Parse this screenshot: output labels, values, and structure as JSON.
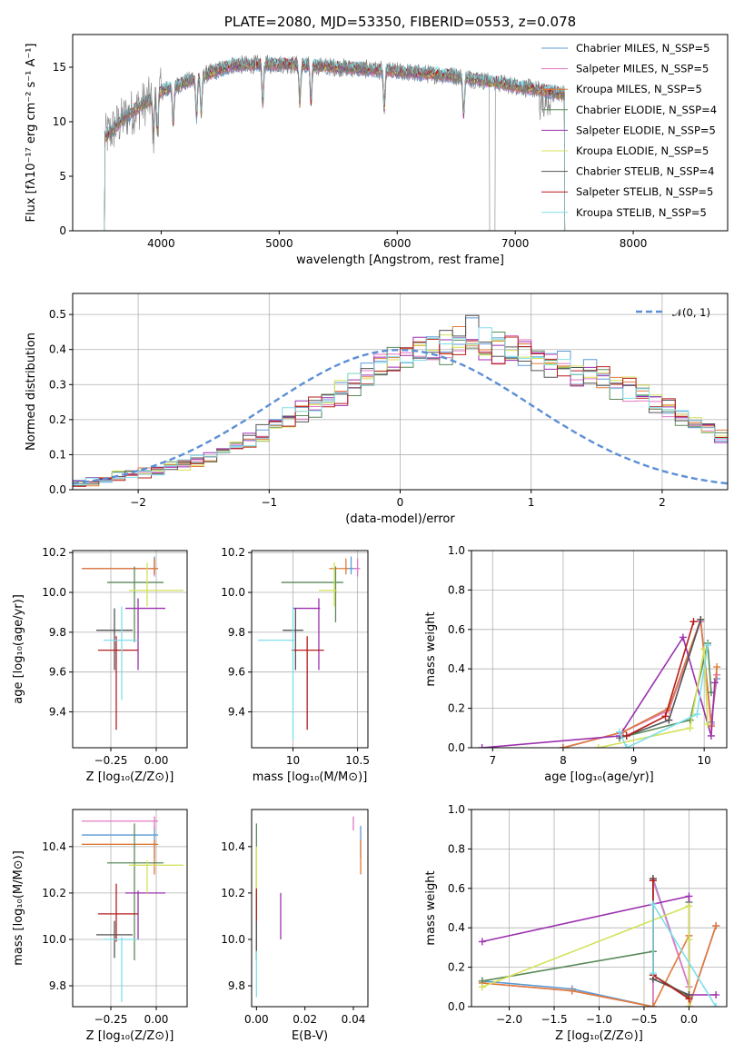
{
  "chart_data": [
    {
      "id": "spectrum",
      "type": "line",
      "title": "PLATE=2080, MJD=53350, FIBERID=0553, z=0.078",
      "xlabel": "wavelength [Angstrom, rest frame]",
      "ylabel": "Flux [fλ10⁻¹⁷ erg cm⁻² s⁻¹ A⁻¹]",
      "xlim": [
        3250,
        8800
      ],
      "ylim": [
        0,
        18
      ],
      "xticks": [
        4000,
        5000,
        6000,
        7000,
        8000
      ],
      "yticks": [
        0,
        5,
        10,
        15
      ],
      "grid": false,
      "legend_position": "upper right",
      "spectrum_range": [
        3520,
        7420
      ],
      "continuum": {
        "x": [
          3520,
          3700,
          3900,
          4000,
          4300,
          4600,
          5000,
          5500,
          6000,
          6500,
          7000,
          7420
        ],
        "y": [
          8.5,
          10.5,
          12.0,
          12.8,
          14.0,
          15.2,
          15.3,
          15.0,
          14.6,
          14.2,
          13.3,
          12.5
        ]
      },
      "series": [
        {
          "name": "Chabrier MILES, N_SSP=5",
          "color": "#5b9bd5"
        },
        {
          "name": "Salpeter MILES, N_SSP=5",
          "color": "#e377c2"
        },
        {
          "name": "Kroupa MILES, N_SSP=5",
          "color": "#e07b39"
        },
        {
          "name": "Chabrier ELODIE, N_SSP=4",
          "color": "#5a8a5a"
        },
        {
          "name": "Salpeter ELODIE, N_SSP=5",
          "color": "#9b2fae"
        },
        {
          "name": "Kroupa ELODIE, N_SSP=5",
          "color": "#d4e157"
        },
        {
          "name": "Chabrier STELIB, N_SSP=4",
          "color": "#555555"
        },
        {
          "name": "Salpeter STELIB, N_SSP=5",
          "color": "#b71c1c"
        },
        {
          "name": "Kroupa STELIB, N_SSP=5",
          "color": "#80deea"
        }
      ],
      "data_color": "#7f7f7f"
    },
    {
      "id": "residuals",
      "type": "histogram",
      "xlabel": "(data-model)/error",
      "ylabel": "Normed distribution",
      "xlim": [
        -2.5,
        2.5
      ],
      "ylim": [
        0,
        0.56
      ],
      "xticks": [
        -2,
        -1,
        0,
        1,
        2
      ],
      "yticks": [
        0.0,
        0.1,
        0.2,
        0.3,
        0.4,
        0.5
      ],
      "grid": true,
      "legend_position": "upper right",
      "reference": {
        "name": "𝒩(0, 1)",
        "mean": 0,
        "sigma": 1,
        "color": "#5b8fd6"
      },
      "bin_edges_start": -2.5,
      "bin_width": 0.1,
      "base_values": [
        0.02,
        0.025,
        0.03,
        0.04,
        0.045,
        0.05,
        0.055,
        0.065,
        0.07,
        0.08,
        0.095,
        0.11,
        0.12,
        0.14,
        0.16,
        0.18,
        0.2,
        0.22,
        0.24,
        0.26,
        0.28,
        0.3,
        0.33,
        0.35,
        0.37,
        0.38,
        0.4,
        0.4,
        0.41,
        0.43,
        0.45,
        0.42,
        0.41,
        0.4,
        0.39,
        0.38,
        0.37,
        0.36,
        0.34,
        0.33,
        0.32,
        0.3,
        0.29,
        0.27,
        0.25,
        0.23,
        0.21,
        0.19,
        0.17,
        0.15,
        0.13,
        0.12,
        0.1,
        0.09,
        0.08,
        0.07,
        0.06,
        0.055,
        0.05,
        0.045
      ],
      "series_colors": [
        "#5b9bd5",
        "#e377c2",
        "#e07b39",
        "#5a8a5a",
        "#9b2fae",
        "#d4e157",
        "#555555",
        "#b71c1c",
        "#80deea"
      ]
    },
    {
      "id": "age-vs-z",
      "type": "errorbar",
      "xlabel": "Z [log₁₀(Z/Z⊙)]",
      "ylabel": "age  [log₁₀(age/yr)]",
      "xlim": [
        -0.46,
        0.17
      ],
      "ylim": [
        9.22,
        10.21
      ],
      "xticks": [
        -0.25,
        0.0
      ],
      "xtick_labels": [
        "−0.25",
        "0.00"
      ],
      "yticks": [
        9.4,
        9.6,
        9.8,
        10.0,
        10.2
      ],
      "grid": true,
      "points": [
        {
          "color": "#5b9bd5",
          "x": -0.01,
          "xerr": [
            0.4,
            0.02
          ],
          "y": 10.12,
          "yerr": [
            0.03,
            0.06
          ]
        },
        {
          "color": "#e377c2",
          "x": -0.01,
          "xerr": [
            0.4,
            0.02
          ],
          "y": 10.12,
          "yerr": [
            0.04,
            0.05
          ]
        },
        {
          "color": "#e07b39",
          "x": -0.01,
          "xerr": [
            0.4,
            0.02
          ],
          "y": 10.12,
          "yerr": [
            0.03,
            0.05
          ]
        },
        {
          "color": "#5a8a5a",
          "x": -0.12,
          "xerr": [
            0.15,
            0.16
          ],
          "y": 10.05,
          "yerr": [
            0.3,
            0.08
          ]
        },
        {
          "color": "#9b2fae",
          "x": -0.1,
          "xerr": [
            0.07,
            0.15
          ],
          "y": 9.92,
          "yerr": [
            0.31,
            0.05
          ]
        },
        {
          "color": "#d4e157",
          "x": -0.05,
          "xerr": [
            0.1,
            0.2
          ],
          "y": 10.01,
          "yerr": [
            0.08,
            0.14
          ]
        },
        {
          "color": "#555555",
          "x": -0.23,
          "xerr": [
            0.1,
            0.1
          ],
          "y": 9.81,
          "yerr": [
            0.2,
            0.11
          ]
        },
        {
          "color": "#b71c1c",
          "x": -0.22,
          "xerr": [
            0.1,
            0.12
          ],
          "y": 9.71,
          "yerr": [
            0.4,
            0.07
          ]
        },
        {
          "color": "#80deea",
          "x": -0.19,
          "xerr": [
            0.1,
            0.09
          ],
          "y": 9.76,
          "yerr": [
            0.3,
            0.17
          ]
        }
      ]
    },
    {
      "id": "age-vs-mass",
      "type": "errorbar",
      "xlabel": "mass [log₁₀(M/M⊙)]",
      "ylabel": "",
      "xlim": [
        9.68,
        10.58
      ],
      "ylim": [
        9.22,
        10.21
      ],
      "xticks": [
        10.0,
        10.5
      ],
      "yticks": [
        9.4,
        9.6,
        9.8,
        10.0,
        10.2
      ],
      "grid": true,
      "points": [
        {
          "color": "#5b9bd5",
          "x": 10.45,
          "xerr": [
            0.04,
            0.04
          ],
          "y": 10.12,
          "yerr": [
            0.03,
            0.06
          ]
        },
        {
          "color": "#e377c2",
          "x": 10.5,
          "xerr": [
            0.03,
            0.02
          ],
          "y": 10.12,
          "yerr": [
            0.04,
            0.05
          ]
        },
        {
          "color": "#e07b39",
          "x": 10.41,
          "xerr": [
            0.13,
            0.02
          ],
          "y": 10.12,
          "yerr": [
            0.03,
            0.05
          ]
        },
        {
          "color": "#5a8a5a",
          "x": 10.33,
          "xerr": [
            0.42,
            0.06
          ],
          "y": 10.05,
          "yerr": [
            0.2,
            0.08
          ]
        },
        {
          "color": "#9b2fae",
          "x": 10.2,
          "xerr": [
            0.2,
            0.01
          ],
          "y": 9.92,
          "yerr": [
            0.31,
            0.05
          ]
        },
        {
          "color": "#d4e157",
          "x": 10.32,
          "xerr": [
            0.12,
            0.02
          ],
          "y": 10.01,
          "yerr": [
            0.08,
            0.14
          ]
        },
        {
          "color": "#555555",
          "x": 10.02,
          "xerr": [
            0.1,
            0.06
          ],
          "y": 9.81,
          "yerr": [
            0.2,
            0.11
          ]
        },
        {
          "color": "#b71c1c",
          "x": 10.11,
          "xerr": [
            0.12,
            0.13
          ],
          "y": 9.71,
          "yerr": [
            0.4,
            0.07
          ]
        },
        {
          "color": "#80deea",
          "x": 10.0,
          "xerr": [
            0.27,
            0.01
          ],
          "y": 9.76,
          "yerr": [
            0.5,
            0.17
          ]
        }
      ]
    },
    {
      "id": "weight-vs-age",
      "type": "line",
      "xlabel": "age  [log₁₀(age/yr)]",
      "ylabel": "mass weight",
      "xlim": [
        6.7,
        10.32
      ],
      "ylim": [
        0,
        1
      ],
      "xticks": [
        7,
        8,
        9,
        10
      ],
      "yticks": [
        0.0,
        0.2,
        0.4,
        0.6,
        0.8,
        1.0
      ],
      "grid": true,
      "series": [
        {
          "color": "#5b9bd5",
          "x": [
            8.0,
            8.85,
            9.5,
            9.95,
            10.1,
            10.18
          ],
          "y": [
            0.0,
            0.08,
            0.2,
            0.65,
            0.13,
            0.35
          ]
        },
        {
          "color": "#e377c2",
          "x": [
            8.0,
            8.85,
            9.5,
            9.95,
            10.1,
            10.18
          ],
          "y": [
            0.0,
            0.08,
            0.19,
            0.64,
            0.12,
            0.37
          ]
        },
        {
          "color": "#e07b39",
          "x": [
            8.0,
            8.85,
            9.5,
            9.95,
            10.1,
            10.18
          ],
          "y": [
            0.0,
            0.08,
            0.2,
            0.65,
            0.11,
            0.41
          ]
        },
        {
          "color": "#5a8a5a",
          "x": [
            8.8,
            9.8,
            10.05,
            10.1
          ],
          "y": [
            0.05,
            0.14,
            0.53,
            0.28
          ]
        },
        {
          "color": "#9b2fae",
          "x": [
            6.85,
            8.8,
            9.7,
            10.1,
            10.15
          ],
          "y": [
            0.0,
            0.06,
            0.56,
            0.06,
            0.33
          ]
        },
        {
          "color": "#d4e157",
          "x": [
            8.5,
            9.8,
            10.0,
            10.05
          ],
          "y": [
            0.0,
            0.1,
            0.5,
            0.12
          ]
        },
        {
          "color": "#555555",
          "x": [
            8.9,
            9.5,
            9.95
          ],
          "y": [
            0.06,
            0.14,
            0.65
          ]
        },
        {
          "color": "#b71c1c",
          "x": [
            8.9,
            9.45,
            9.85
          ],
          "y": [
            0.06,
            0.16,
            0.64
          ]
        },
        {
          "color": "#80deea",
          "x": [
            8.8,
            8.9,
            9.9,
            10.05
          ],
          "y": [
            0.08,
            0.0,
            0.17,
            0.52
          ]
        }
      ]
    },
    {
      "id": "mass-vs-z",
      "type": "errorbar",
      "xlabel": "Z [log₁₀(Z/Z⊙)]",
      "ylabel": "mass [log₁₀(M/M⊙)]",
      "xlim": [
        -0.46,
        0.17
      ],
      "ylim": [
        9.71,
        10.56
      ],
      "xticks": [
        -0.25,
        0.0
      ],
      "xtick_labels": [
        "−0.25",
        "0.00"
      ],
      "yticks": [
        9.8,
        10.0,
        10.2,
        10.4
      ],
      "grid": true,
      "points": [
        {
          "color": "#5b9bd5",
          "x": -0.01,
          "xerr": [
            0.4,
            0.02
          ],
          "y": 10.45,
          "yerr": [
            0.1,
            0.04
          ]
        },
        {
          "color": "#e377c2",
          "x": -0.01,
          "xerr": [
            0.4,
            0.02
          ],
          "y": 10.51,
          "yerr": [
            0.04,
            0.02
          ]
        },
        {
          "color": "#e07b39",
          "x": -0.01,
          "xerr": [
            0.4,
            0.02
          ],
          "y": 10.41,
          "yerr": [
            0.13,
            0.02
          ]
        },
        {
          "color": "#5a8a5a",
          "x": -0.12,
          "xerr": [
            0.15,
            0.16
          ],
          "y": 10.33,
          "yerr": [
            0.42,
            0.17
          ]
        },
        {
          "color": "#9b2fae",
          "x": -0.1,
          "xerr": [
            0.07,
            0.15
          ],
          "y": 10.2,
          "yerr": [
            0.2,
            0.01
          ]
        },
        {
          "color": "#d4e157",
          "x": -0.05,
          "xerr": [
            0.1,
            0.2
          ],
          "y": 10.32,
          "yerr": [
            0.12,
            0.02
          ]
        },
        {
          "color": "#555555",
          "x": -0.23,
          "xerr": [
            0.1,
            0.1
          ],
          "y": 10.02,
          "yerr": [
            0.1,
            0.06
          ]
        },
        {
          "color": "#b71c1c",
          "x": -0.22,
          "xerr": [
            0.1,
            0.12
          ],
          "y": 10.11,
          "yerr": [
            0.12,
            0.13
          ]
        },
        {
          "color": "#80deea",
          "x": -0.19,
          "xerr": [
            0.1,
            0.09
          ],
          "y": 10.0,
          "yerr": [
            0.27,
            0.01
          ]
        }
      ]
    },
    {
      "id": "mass-vs-ebv",
      "type": "errorbar",
      "xlabel": "E(B-V)",
      "ylabel": "",
      "xlim": [
        -0.002,
        0.046
      ],
      "ylim": [
        9.71,
        10.56
      ],
      "xticks": [
        0.0,
        0.02,
        0.04
      ],
      "xtick_labels": [
        "0.00",
        "0.02",
        "0.04"
      ],
      "yticks": [
        9.8,
        10.0,
        10.2,
        10.4
      ],
      "grid": false,
      "points": [
        {
          "color": "#5b9bd5",
          "x": 0.043,
          "xerr": [
            0,
            0
          ],
          "y": 10.45,
          "yerr": [
            0.1,
            0.04
          ]
        },
        {
          "color": "#e377c2",
          "x": 0.04,
          "xerr": [
            0,
            0
          ],
          "y": 10.51,
          "yerr": [
            0.04,
            0.02
          ]
        },
        {
          "color": "#e07b39",
          "x": 0.043,
          "xerr": [
            0,
            0
          ],
          "y": 10.41,
          "yerr": [
            0.13,
            0.02
          ]
        },
        {
          "color": "#5a8a5a",
          "x": 0.0,
          "xerr": [
            0,
            0
          ],
          "y": 10.33,
          "yerr": [
            0.42,
            0.17
          ]
        },
        {
          "color": "#9b2fae",
          "x": 0.01,
          "xerr": [
            0,
            0
          ],
          "y": 10.1,
          "yerr": [
            0.1,
            0.1
          ]
        },
        {
          "color": "#d4e157",
          "x": 0.0,
          "xerr": [
            0,
            0
          ],
          "y": 10.32,
          "yerr": [
            0.12,
            0.08
          ]
        },
        {
          "color": "#555555",
          "x": 0.0,
          "xerr": [
            0,
            0
          ],
          "y": 10.02,
          "yerr": [
            0.1,
            0.06
          ]
        },
        {
          "color": "#b71c1c",
          "x": 0.0,
          "xerr": [
            0,
            0
          ],
          "y": 10.15,
          "yerr": [
            0.07,
            0.07
          ]
        },
        {
          "color": "#80deea",
          "x": 0.0,
          "xerr": [
            0,
            0
          ],
          "y": 9.85,
          "yerr": [
            0.1,
            0.1
          ]
        }
      ]
    },
    {
      "id": "weight-vs-z",
      "type": "line",
      "xlabel": "Z [log₁₀(Z/Z⊙)]",
      "ylabel": "mass weight",
      "xlim": [
        -2.42,
        0.42
      ],
      "ylim": [
        0,
        1
      ],
      "xticks": [
        -2.0,
        -1.5,
        -1.0,
        -0.5,
        0.0
      ],
      "xtick_labels": [
        "−2.0",
        "−1.5",
        "−1.0",
        "−0.5",
        "0.0"
      ],
      "yticks": [
        0.0,
        0.2,
        0.4,
        0.6,
        0.8,
        1.0
      ],
      "grid": true,
      "series": [
        {
          "color": "#5b9bd5",
          "x": [
            -2.3,
            -1.3,
            -0.4,
            -0.4,
            0.0,
            0.0,
            0.3
          ],
          "y": [
            0.13,
            0.09,
            0.0,
            0.65,
            0.1,
            0.0,
            0.41
          ]
        },
        {
          "color": "#e377c2",
          "x": [
            -2.3,
            -1.3,
            -0.4,
            -0.4,
            0.0,
            0.0,
            0.3
          ],
          "y": [
            0.12,
            0.08,
            0.0,
            0.64,
            0.1,
            0.0,
            0.41
          ]
        },
        {
          "color": "#e07b39",
          "x": [
            -2.3,
            -1.3,
            -0.4,
            0.0,
            0.0,
            0.3
          ],
          "y": [
            0.12,
            0.08,
            0.0,
            0.36,
            0.0,
            0.41
          ]
        },
        {
          "color": "#5a8a5a",
          "x": [
            -2.3,
            -0.4,
            -0.4,
            0.0,
            0.0
          ],
          "y": [
            0.13,
            0.28,
            0.16,
            0.05,
            0.53
          ]
        },
        {
          "color": "#9b2fae",
          "x": [
            -2.3,
            0.0,
            0.0,
            0.3
          ],
          "y": [
            0.33,
            0.56,
            0.06,
            0.06
          ]
        },
        {
          "color": "#d4e157",
          "x": [
            -2.3,
            0.0,
            0.0,
            0.0
          ],
          "y": [
            0.1,
            0.51,
            0.0,
            0.34
          ]
        },
        {
          "color": "#555555",
          "x": [
            -0.4,
            -0.4,
            0.0
          ],
          "y": [
            0.65,
            0.14,
            0.06
          ]
        },
        {
          "color": "#b71c1c",
          "x": [
            -0.4,
            -0.4,
            0.0
          ],
          "y": [
            0.64,
            0.16,
            0.04
          ]
        },
        {
          "color": "#80deea",
          "x": [
            -0.4,
            -0.4,
            0.3
          ],
          "y": [
            0.17,
            0.52,
            0.0
          ]
        }
      ]
    }
  ]
}
